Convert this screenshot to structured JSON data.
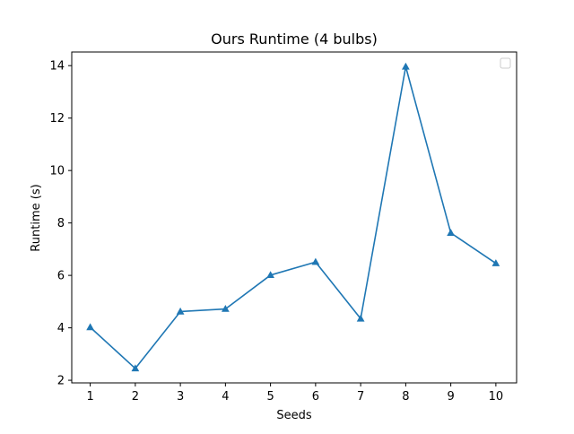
{
  "chart_data": {
    "type": "line",
    "title": "Ours Runtime (4 bulbs)",
    "xlabel": "Seeds",
    "ylabel": "Runtime (s)",
    "x": [
      1,
      2,
      3,
      4,
      5,
      6,
      7,
      8,
      9,
      10
    ],
    "series": [
      {
        "values": [
          4.02,
          2.45,
          4.62,
          4.72,
          6.01,
          6.51,
          4.35,
          13.96,
          7.62,
          6.46
        ],
        "color": "#1f77b4",
        "marker": "triangle-up"
      }
    ],
    "xlim": [
      0.59,
      10.46
    ],
    "ylim": [
      1.9,
      14.52
    ],
    "xticks": [
      1,
      2,
      3,
      4,
      5,
      6,
      7,
      8,
      9,
      10
    ],
    "yticks": [
      2,
      4,
      6,
      8,
      10,
      12,
      14
    ],
    "grid": false,
    "legend": {
      "placement": "upper-right",
      "entries": []
    }
  }
}
